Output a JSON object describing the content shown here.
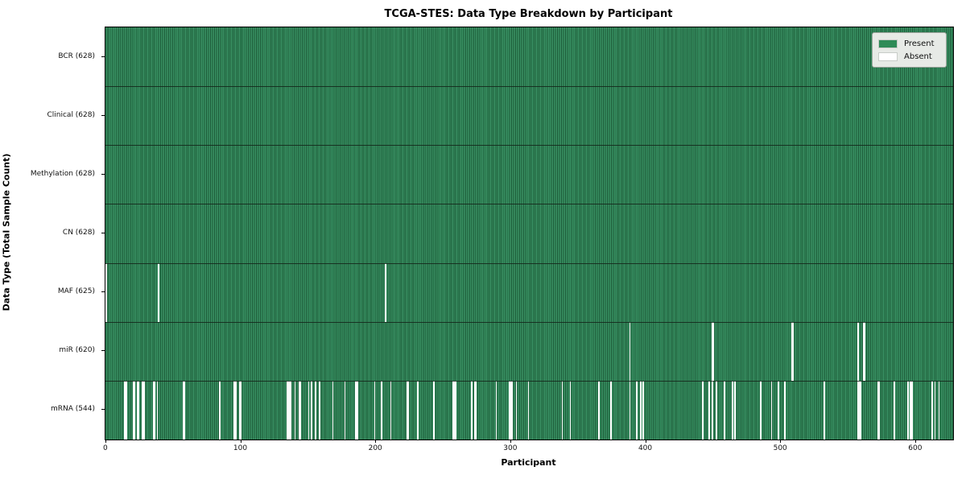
{
  "title": "TCGA-STES: Data Type Breakdown by Participant",
  "axes": {
    "xlabel": "Participant",
    "ylabel": "Data Type (Total Sample Count)",
    "x_ticks": [
      0,
      100,
      200,
      300,
      400,
      500,
      600
    ]
  },
  "legend": {
    "items": [
      {
        "label": "Present",
        "color": "#2e8b57"
      },
      {
        "label": "Absent",
        "color": "#ffffff"
      }
    ]
  },
  "chart_data": {
    "type": "heatmap",
    "title": "TCGA-STES: Data Type Breakdown by Participant",
    "xlabel": "Participant",
    "ylabel": "Data Type (Total Sample Count)",
    "x_range": [
      0,
      627
    ],
    "total_participants": 628,
    "legend_position": "upper right",
    "colors": {
      "present": "#2e8b57",
      "present_edge": "#1d5c39",
      "absent": "#ffffff"
    },
    "rows": [
      {
        "data_type": "BCR",
        "label": "BCR (628)",
        "count": 628,
        "absent_participants": []
      },
      {
        "data_type": "Clinical",
        "label": "Clinical (628)",
        "count": 628,
        "absent_participants": []
      },
      {
        "data_type": "Methylation",
        "label": "Methylation (628)",
        "count": 628,
        "absent_participants": []
      },
      {
        "data_type": "CN",
        "label": "CN (628)",
        "count": 628,
        "absent_participants": []
      },
      {
        "data_type": "MAF",
        "label": "MAF (625)",
        "count": 625,
        "absent_participants": [
          0,
          39,
          207
        ]
      },
      {
        "data_type": "miR",
        "label": "miR (620)",
        "count": 620,
        "absent_participants": [
          388,
          449,
          450,
          508,
          509,
          557,
          561,
          562
        ]
      },
      {
        "data_type": "mRNA",
        "label": "mRNA (544)",
        "count": 544,
        "absent_participants": [
          14,
          15,
          20,
          21,
          23,
          24,
          27,
          28,
          35,
          36,
          38,
          57,
          58,
          84,
          95,
          96,
          99,
          100,
          134,
          135,
          136,
          137,
          140,
          143,
          144,
          150,
          152,
          155,
          158,
          168,
          177,
          185,
          186,
          199,
          204,
          211,
          223,
          224,
          231,
          243,
          257,
          258,
          259,
          271,
          273,
          274,
          289,
          299,
          300,
          301,
          304,
          313,
          338,
          344,
          365,
          374,
          388,
          393,
          396,
          398,
          442,
          447,
          449,
          452,
          458,
          464,
          466,
          485,
          493,
          498,
          503,
          532,
          557,
          558,
          559,
          572,
          573,
          584,
          594,
          596,
          597,
          612,
          614,
          617
        ]
      }
    ]
  }
}
